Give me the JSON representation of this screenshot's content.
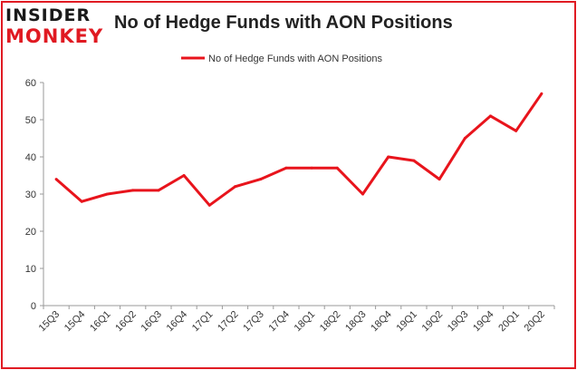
{
  "brand": {
    "logo_top": "INSIDER",
    "logo_bottom": "MONKEY",
    "logo_accent": "#e01a22"
  },
  "chart_data": {
    "type": "line",
    "title": "No of Hedge Funds with AON Positions",
    "xlabel": "",
    "ylabel": "",
    "categories": [
      "15Q3",
      "15Q4",
      "16Q1",
      "16Q2",
      "16Q3",
      "16Q4",
      "17Q1",
      "17Q2",
      "17Q3",
      "17Q4",
      "18Q1",
      "18Q2",
      "18Q3",
      "18Q4",
      "19Q1",
      "19Q2",
      "19Q3",
      "19Q4",
      "20Q1",
      "20Q2"
    ],
    "series": [
      {
        "name": "No of Hedge Funds with AON Positions",
        "color": "#e8141c",
        "values": [
          34,
          28,
          30,
          31,
          31,
          35,
          27,
          32,
          34,
          37,
          37,
          37,
          30,
          40,
          39,
          34,
          45,
          51,
          47,
          57
        ]
      }
    ],
    "ylim": [
      0,
      60
    ],
    "yticks": [
      0,
      10,
      20,
      30,
      40,
      50,
      60
    ],
    "grid": false,
    "legend_position": "top-center",
    "frame_border_color": "#e01a22"
  }
}
